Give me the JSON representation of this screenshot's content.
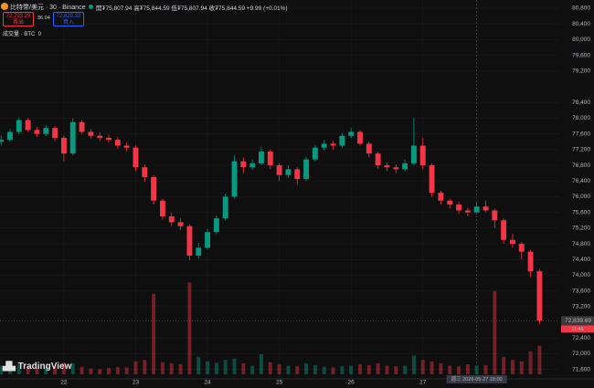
{
  "header": {
    "symbol": "比特幣/美元 · 30 · Binance",
    "ohlc": "開₮75,807.94 高₮75,844.59 低₮75,807.94 收₮75,844.59 +9.99 (+0.01%)",
    "sell_price": "72,793.29",
    "sell_label": "賣出",
    "spread": "36.04",
    "buy_price": "72,829.33",
    "buy_label": "買入",
    "volume_label": "成交量 · BTC",
    "volume_value": "0",
    "brand": "TradingView"
  },
  "chart_data": {
    "type": "candlestick",
    "x": [
      21.125,
      21.25,
      21.375,
      21.5,
      21.625,
      21.75,
      21.875,
      22,
      22.125,
      22.25,
      22.375,
      22.5,
      22.625,
      22.75,
      22.875,
      23,
      23.125,
      23.25,
      23.375,
      23.5,
      23.625,
      23.75,
      23.875,
      24,
      24.125,
      24.25,
      24.375,
      24.5,
      24.625,
      24.75,
      24.875,
      25,
      25.125,
      25.25,
      25.375,
      25.5,
      25.625,
      25.75,
      25.875,
      26,
      26.125,
      26.25,
      26.375,
      26.5,
      26.625,
      26.75,
      26.875,
      27,
      27.125,
      27.25,
      27.375,
      27.5,
      27.625,
      27.75,
      27.875,
      28,
      28.125,
      28.25,
      28.375,
      28.5,
      28.625
    ],
    "open": [
      77400,
      77450,
      77650,
      77950,
      77700,
      77600,
      77750,
      77500,
      77100,
      77900,
      77650,
      77550,
      77500,
      77450,
      77300,
      77250,
      76750,
      76500,
      75900,
      75500,
      75350,
      75250,
      74500,
      74700,
      75100,
      75450,
      76000,
      76900,
      76750,
      76850,
      77150,
      76800,
      76550,
      76700,
      76450,
      76950,
      77250,
      77350,
      77300,
      77550,
      77650,
      77350,
      77100,
      76800,
      76750,
      76700,
      76850,
      77300,
      76800,
      76100,
      75900,
      75800,
      75650,
      75600,
      75750,
      75650,
      75400,
      74900,
      74800,
      74600,
      74100
    ],
    "high": [
      77560,
      77720,
      78020,
      78000,
      77780,
      77820,
      77800,
      77560,
      78000,
      77950,
      77720,
      77640,
      77580,
      77520,
      77380,
      77300,
      76820,
      76550,
      75950,
      75600,
      75450,
      75300,
      74820,
      75180,
      75520,
      76080,
      77050,
      77000,
      76950,
      77280,
      77200,
      76850,
      76800,
      76750,
      77020,
      77320,
      77450,
      77420,
      77620,
      77750,
      77700,
      77400,
      77150,
      76880,
      76820,
      76950,
      78000,
      77500,
      76850,
      76150,
      75950,
      75880,
      75720,
      75850,
      75900,
      75700,
      75450,
      75050,
      74850,
      74650,
      74150
    ],
    "low": [
      77300,
      77400,
      77600,
      77650,
      77520,
      77550,
      77420,
      76900,
      77050,
      77600,
      77480,
      77420,
      77380,
      77220,
      77150,
      76650,
      76380,
      75800,
      75420,
      75250,
      75150,
      74380,
      74420,
      74650,
      75050,
      75400,
      75950,
      76600,
      76680,
      76800,
      76700,
      76400,
      76480,
      76300,
      76400,
      76900,
      77180,
      77200,
      77250,
      77500,
      77300,
      77000,
      76720,
      76650,
      76600,
      76650,
      76800,
      76700,
      76000,
      75800,
      75700,
      75560,
      75500,
      75550,
      75600,
      75200,
      74800,
      74700,
      74400,
      73950,
      72750
    ],
    "close": [
      77450,
      77650,
      77950,
      77700,
      77600,
      77750,
      77500,
      77100,
      77900,
      77650,
      77550,
      77500,
      77450,
      77300,
      77250,
      76750,
      76500,
      75900,
      75500,
      75350,
      75250,
      74500,
      74700,
      75100,
      75450,
      76000,
      76900,
      76750,
      76850,
      77150,
      76800,
      76550,
      76700,
      76450,
      76950,
      77250,
      77350,
      77300,
      77550,
      77650,
      77350,
      77100,
      76800,
      76750,
      76700,
      76850,
      77300,
      76800,
      76100,
      75900,
      75800,
      75650,
      75600,
      75750,
      75650,
      75400,
      74900,
      74800,
      74600,
      74100,
      72840
    ],
    "volume": [
      300,
      250,
      350,
      280,
      220,
      260,
      300,
      400,
      380,
      260,
      200,
      180,
      220,
      250,
      240,
      450,
      500,
      2800,
      420,
      380,
      350,
      3200,
      600,
      450,
      400,
      500,
      550,
      380,
      300,
      700,
      420,
      350,
      300,
      280,
      380,
      320,
      260,
      240,
      280,
      300,
      350,
      320,
      380,
      300,
      280,
      300,
      650,
      500,
      450,
      380,
      300,
      280,
      350,
      300,
      320,
      2900,
      600,
      500,
      450,
      800,
      1000
    ],
    "volume_ylim": [
      0,
      3500
    ],
    "up_color": "#089981",
    "down_color": "#f23645",
    "ylim": [
      71360,
      81010
    ],
    "xlim": [
      21.11,
      28.9
    ],
    "yticks": [
      {
        "value": 71600,
        "label": "71,600"
      },
      {
        "value": 72000,
        "label": "72,000"
      },
      {
        "value": 72400,
        "label": "72,400"
      },
      {
        "value": 73200,
        "label": "73,200"
      },
      {
        "value": 73600,
        "label": "73,600"
      },
      {
        "value": 74000,
        "label": "74,000"
      },
      {
        "value": 74400,
        "label": "74,400"
      },
      {
        "value": 74800,
        "label": "74,800"
      },
      {
        "value": 75200,
        "label": "75,200"
      },
      {
        "value": 75600,
        "label": "75,600"
      },
      {
        "value": 76000,
        "label": "76,000"
      },
      {
        "value": 76400,
        "label": "76,400"
      },
      {
        "value": 76800,
        "label": "76,800"
      },
      {
        "value": 77200,
        "label": "77,200"
      },
      {
        "value": 77600,
        "label": "77,600"
      },
      {
        "value": 78000,
        "label": "78,000"
      },
      {
        "value": 78400,
        "label": "78,400"
      },
      {
        "value": 79200,
        "label": "79,200"
      },
      {
        "value": 79600,
        "label": "79,600"
      },
      {
        "value": 80000,
        "label": "80,000"
      },
      {
        "value": 80400,
        "label": "80,400"
      },
      {
        "value": 80800,
        "label": "80,800"
      }
    ],
    "xticks": [
      22,
      23,
      24,
      25,
      26,
      27
    ],
    "grid": true,
    "last_price": {
      "value": 72839.69,
      "label": "72,839.69"
    },
    "countdown": "11:48",
    "crosshair_label": "週三 2026-05-27   18:00"
  }
}
